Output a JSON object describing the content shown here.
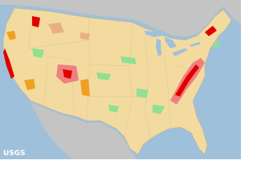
{
  "credit": "USGS"
}
